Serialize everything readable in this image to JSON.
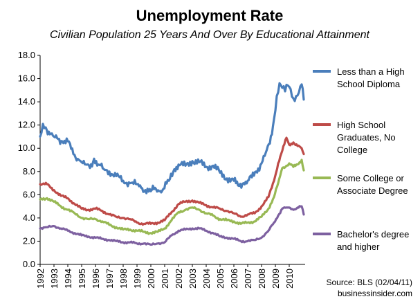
{
  "chart_data": {
    "type": "line",
    "title": "Unemployment Rate",
    "subtitle": "Civilian Population 25 Years And Over By Educational Attainment",
    "xlabel": "",
    "ylabel": "",
    "ylim": [
      0,
      18
    ],
    "yticks": [
      "0.0",
      "2.0",
      "4.0",
      "6.0",
      "8.0",
      "10.0",
      "12.0",
      "14.0",
      "16.0",
      "18.0"
    ],
    "xlim": [
      1992,
      2011.15
    ],
    "xticks": [
      "1992",
      "1993",
      "1994",
      "1995",
      "1996",
      "1997",
      "1998",
      "1999",
      "2000",
      "2001",
      "2002",
      "2003",
      "2004",
      "2005",
      "2006",
      "2007",
      "2008",
      "2009",
      "2010"
    ],
    "grid": false,
    "legend_position": "right",
    "series": [
      {
        "name": "Less than a High School Diploma",
        "legend_lines": [
          "Less than a High",
          "School Diploma"
        ],
        "color": "#4a7ebb",
        "x": [
          1992.0,
          1992.2,
          1992.4,
          1992.7,
          1993.0,
          1993.3,
          1993.6,
          1994.0,
          1994.4,
          1994.8,
          1995.0,
          1995.3,
          1995.6,
          1995.9,
          1996.2,
          1996.6,
          1997.0,
          1997.5,
          1998.0,
          1998.5,
          1999.0,
          1999.3,
          1999.6,
          2000.0,
          2000.3,
          2000.6,
          2000.9,
          2001.3,
          2001.7,
          2002.0,
          2002.5,
          2003.0,
          2003.5,
          2004.0,
          2004.5,
          2005.0,
          2005.5,
          2006.0,
          2006.3,
          2006.7,
          2007.0,
          2007.3,
          2007.6,
          2008.0,
          2008.3,
          2008.6,
          2008.9,
          2009.1,
          2009.3,
          2009.5,
          2009.7,
          2009.9,
          2010.1,
          2010.3,
          2010.5,
          2010.7,
          2010.9,
          2011.05
        ],
        "values": [
          11.0,
          12.1,
          11.8,
          11.2,
          11.0,
          10.8,
          10.6,
          10.6,
          9.5,
          9.0,
          8.8,
          8.6,
          8.3,
          9.1,
          8.6,
          8.2,
          8.0,
          7.6,
          7.2,
          7.0,
          6.9,
          6.6,
          6.4,
          6.3,
          6.6,
          6.3,
          6.5,
          7.2,
          8.2,
          8.6,
          8.5,
          8.9,
          8.8,
          8.4,
          8.5,
          7.9,
          7.4,
          7.2,
          6.8,
          7.0,
          7.2,
          7.5,
          8.0,
          8.7,
          9.6,
          10.4,
          12.5,
          14.5,
          15.6,
          15.2,
          14.9,
          15.4,
          15.1,
          14.3,
          14.5,
          14.8,
          15.5,
          14.2
        ]
      },
      {
        "name": "High School Graduates, No College",
        "legend_lines": [
          "High School",
          "Graduates, No",
          "College"
        ],
        "color": "#be4b48",
        "x": [
          1992.0,
          1992.5,
          1993.0,
          1993.5,
          1994.0,
          1994.5,
          1995.0,
          1995.5,
          1996.0,
          1996.5,
          1997.0,
          1997.5,
          1998.0,
          1998.5,
          1999.0,
          1999.5,
          2000.0,
          2000.5,
          2001.0,
          2001.5,
          2002.0,
          2002.5,
          2003.0,
          2003.5,
          2004.0,
          2004.5,
          2005.0,
          2005.5,
          2006.0,
          2006.5,
          2007.0,
          2007.5,
          2008.0,
          2008.5,
          2008.9,
          2009.2,
          2009.5,
          2009.8,
          2010.0,
          2010.3,
          2010.6,
          2010.9,
          2011.05
        ],
        "values": [
          6.9,
          6.9,
          6.4,
          5.9,
          5.7,
          5.2,
          4.8,
          4.7,
          4.8,
          4.6,
          4.3,
          4.1,
          4.0,
          3.9,
          3.6,
          3.5,
          3.5,
          3.6,
          3.8,
          4.5,
          5.2,
          5.4,
          5.5,
          5.3,
          5.1,
          4.9,
          4.8,
          4.6,
          4.4,
          4.1,
          4.3,
          4.4,
          5.0,
          5.8,
          7.2,
          8.7,
          9.8,
          10.9,
          10.3,
          10.5,
          10.2,
          10.0,
          9.5
        ]
      },
      {
        "name": "Some College or Associate Degree",
        "legend_lines": [
          "Some College or",
          "Associate Degree"
        ],
        "color": "#98b954",
        "x": [
          1992.0,
          1992.5,
          1993.0,
          1993.5,
          1994.0,
          1994.5,
          1995.0,
          1995.5,
          1996.0,
          1996.5,
          1997.0,
          1997.5,
          1998.0,
          1998.5,
          1999.0,
          1999.5,
          2000.0,
          2000.5,
          2001.0,
          2001.5,
          2002.0,
          2002.5,
          2003.0,
          2003.5,
          2004.0,
          2004.5,
          2005.0,
          2005.5,
          2006.0,
          2006.5,
          2007.0,
          2007.5,
          2008.0,
          2008.5,
          2008.9,
          2009.2,
          2009.5,
          2009.8,
          2010.0,
          2010.3,
          2010.6,
          2010.9,
          2011.05
        ],
        "values": [
          5.6,
          5.7,
          5.4,
          5.0,
          4.7,
          4.4,
          4.0,
          3.9,
          3.9,
          3.7,
          3.4,
          3.2,
          3.0,
          3.0,
          2.9,
          2.8,
          2.7,
          2.8,
          3.1,
          3.8,
          4.5,
          4.7,
          4.9,
          4.7,
          4.4,
          4.2,
          3.9,
          3.8,
          3.7,
          3.5,
          3.6,
          3.7,
          4.1,
          4.8,
          5.8,
          7.0,
          8.3,
          8.5,
          8.7,
          8.4,
          8.6,
          9.0,
          8.1
        ]
      },
      {
        "name": "Bachelor's degree and higher",
        "legend_lines": [
          "Bachelor's degree",
          "and higher"
        ],
        "color": "#7d60a0",
        "x": [
          1992.0,
          1992.5,
          1993.0,
          1993.5,
          1994.0,
          1994.5,
          1995.0,
          1995.5,
          1996.0,
          1996.5,
          1997.0,
          1997.5,
          1998.0,
          1998.5,
          1999.0,
          1999.5,
          2000.0,
          2000.5,
          2001.0,
          2001.5,
          2002.0,
          2002.5,
          2003.0,
          2003.5,
          2004.0,
          2004.5,
          2005.0,
          2005.5,
          2006.0,
          2006.5,
          2007.0,
          2007.5,
          2008.0,
          2008.5,
          2008.9,
          2009.2,
          2009.5,
          2009.8,
          2010.0,
          2010.3,
          2010.6,
          2010.9,
          2011.05
        ],
        "values": [
          3.1,
          3.2,
          3.3,
          3.1,
          2.9,
          2.7,
          2.5,
          2.4,
          2.3,
          2.2,
          2.1,
          2.0,
          1.9,
          1.9,
          1.8,
          1.8,
          1.7,
          1.8,
          1.9,
          2.5,
          2.9,
          3.0,
          3.1,
          3.1,
          2.9,
          2.7,
          2.4,
          2.3,
          2.2,
          2.0,
          2.0,
          2.1,
          2.3,
          2.9,
          3.6,
          4.2,
          4.8,
          4.9,
          4.9,
          4.7,
          4.9,
          5.0,
          4.3
        ]
      }
    ],
    "source_lines": [
      "Source: BLS (02/04/11)",
      "businessinsider.com"
    ]
  }
}
